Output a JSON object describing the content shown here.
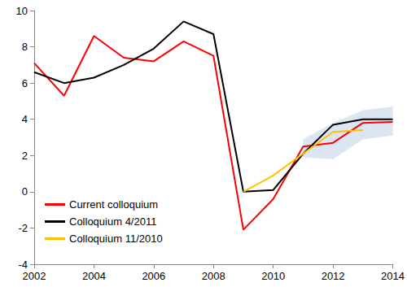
{
  "chart_data": {
    "type": "line",
    "x": [
      2002,
      2003,
      2004,
      2005,
      2006,
      2007,
      2008,
      2009,
      2010,
      2011,
      2012,
      2013,
      2014
    ],
    "series": [
      {
        "name": "Current colloquium",
        "color": "#ff0000",
        "values": [
          7.1,
          5.3,
          8.6,
          7.4,
          7.2,
          8.3,
          7.5,
          -2.1,
          -0.4,
          2.5,
          2.7,
          3.8,
          3.85
        ]
      },
      {
        "name": "Colloquium 4/2011",
        "color": "#000000",
        "values": [
          6.6,
          6.0,
          6.3,
          7.0,
          7.9,
          9.4,
          8.7,
          0.0,
          0.1,
          2.1,
          3.7,
          4.0,
          4.0
        ]
      },
      {
        "name": "Colloquium 11/2010",
        "color": "#ffc000",
        "values": [
          null,
          null,
          null,
          null,
          null,
          null,
          null,
          0.0,
          0.9,
          2.1,
          3.3,
          3.4,
          null
        ]
      }
    ],
    "band": {
      "color": "#dce6f2",
      "x": [
        2011,
        2012,
        2013,
        2014
      ],
      "lower": [
        1.9,
        1.8,
        2.9,
        3.1
      ],
      "upper": [
        2.9,
        3.8,
        4.5,
        4.7
      ]
    },
    "xlim": [
      2002,
      2014
    ],
    "xticks": [
      2002,
      2004,
      2006,
      2008,
      2010,
      2012,
      2014
    ],
    "ylim": [
      -4,
      10
    ],
    "yticks": [
      -4,
      -2,
      0,
      2,
      4,
      6,
      8,
      10
    ],
    "grid": false,
    "legend": "lower left"
  }
}
